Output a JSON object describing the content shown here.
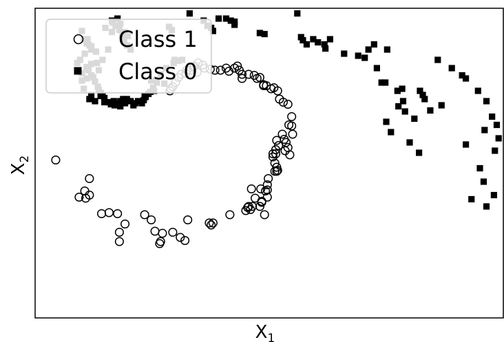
{
  "chart_data": {
    "type": "scatter",
    "title": "",
    "xlabel_main": "X",
    "xlabel_sub": "1",
    "ylabel_main": "X",
    "ylabel_sub": "2",
    "xlim": [
      -2.0,
      3.0
    ],
    "ylim": [
      -1.4,
      1.6
    ],
    "grid": false,
    "ticks_shown": false,
    "legend": {
      "placement": "top-left",
      "entries": [
        "Class 1",
        "Class 0"
      ]
    },
    "series": [
      {
        "name": "Class 1",
        "marker": "open-circle",
        "color": "#000000",
        "points": [
          [
            -1.78,
            0.13
          ],
          [
            -1.42,
            -0.05
          ],
          [
            -1.47,
            -0.17
          ],
          [
            -1.42,
            -0.21
          ],
          [
            -1.53,
            -0.23
          ],
          [
            -1.46,
            -0.24
          ],
          [
            -1.29,
            -0.39
          ],
          [
            -1.21,
            -0.38
          ],
          [
            -1.12,
            -0.39
          ],
          [
            -1.04,
            -0.49
          ],
          [
            -1.1,
            -0.57
          ],
          [
            -1.1,
            -0.66
          ],
          [
            -0.83,
            -0.4
          ],
          [
            -0.76,
            -0.45
          ],
          [
            -0.72,
            -0.56
          ],
          [
            -0.66,
            -0.66
          ],
          [
            -0.67,
            -0.68
          ],
          [
            -0.64,
            -0.58
          ],
          [
            -0.53,
            -0.57
          ],
          [
            -0.45,
            -0.62
          ],
          [
            -0.4,
            -0.65
          ],
          [
            -0.37,
            -0.45
          ],
          [
            -0.14,
            -0.48
          ],
          [
            -0.12,
            -0.5
          ],
          [
            -0.1,
            -0.48
          ],
          [
            0.08,
            -0.4
          ],
          [
            0.25,
            -0.36
          ],
          [
            0.27,
            -0.33
          ],
          [
            0.3,
            -0.35
          ],
          [
            0.28,
            -0.32
          ],
          [
            0.32,
            -0.32
          ],
          [
            0.35,
            -0.24
          ],
          [
            0.4,
            -0.32
          ],
          [
            0.42,
            -0.28
          ],
          [
            0.42,
            -0.27
          ],
          [
            0.46,
            -0.17
          ],
          [
            0.48,
            -0.16
          ],
          [
            0.48,
            -0.11
          ],
          [
            0.45,
            -0.4
          ],
          [
            0.49,
            -0.05
          ],
          [
            0.56,
            0.02
          ],
          [
            0.58,
            0.02
          ],
          [
            0.59,
            0.03
          ],
          [
            0.58,
            0.06
          ],
          [
            0.56,
            0.1
          ],
          [
            0.54,
            0.16
          ],
          [
            0.57,
            0.19
          ],
          [
            0.57,
            0.23
          ],
          [
            0.6,
            0.27
          ],
          [
            0.68,
            0.3
          ],
          [
            0.66,
            0.33
          ],
          [
            0.7,
            0.25
          ],
          [
            0.72,
            0.18
          ],
          [
            0.75,
            0.38
          ],
          [
            0.74,
            0.46
          ],
          [
            0.71,
            0.47
          ],
          [
            0.74,
            0.55
          ],
          [
            0.7,
            0.67
          ],
          [
            0.65,
            0.69
          ],
          [
            0.61,
            0.72
          ],
          [
            0.59,
            0.8
          ],
          [
            0.55,
            0.83
          ],
          [
            0.52,
            0.82
          ],
          [
            0.47,
            0.85
          ],
          [
            0.44,
            0.86
          ],
          [
            0.4,
            0.93
          ],
          [
            0.34,
            0.95
          ],
          [
            0.37,
            0.92
          ],
          [
            0.28,
            0.96
          ],
          [
            0.21,
            0.92
          ],
          [
            0.18,
            1.0
          ],
          [
            0.16,
            1.04
          ],
          [
            0.13,
            1.02
          ],
          [
            0.07,
            0.99
          ],
          [
            0.04,
            1.02
          ],
          [
            -0.02,
            1.0
          ],
          [
            -0.08,
            1.0
          ],
          [
            -0.13,
            1.01
          ],
          [
            -0.19,
            1.02
          ],
          [
            -0.27,
            0.98
          ],
          [
            -0.26,
            1.07
          ],
          [
            -0.31,
            1.03
          ],
          [
            -0.34,
            1.0
          ],
          [
            -0.38,
            1.0
          ],
          [
            -0.39,
            0.97
          ],
          [
            -0.47,
            0.93
          ],
          [
            -0.5,
            0.88
          ],
          [
            -0.53,
            0.84
          ],
          [
            -0.55,
            0.82
          ],
          [
            -0.56,
            0.8
          ],
          [
            -0.44,
            0.96
          ],
          [
            -0.21,
            1.05
          ],
          [
            -0.3,
            1.04
          ],
          [
            0.21,
            0.96
          ],
          [
            0.64,
            0.38
          ],
          [
            0.54,
            0.19
          ],
          [
            0.44,
            0.85
          ],
          [
            0.67,
            0.22
          ],
          [
            0.58,
            0.32
          ],
          [
            0.48,
            -0.23
          ],
          [
            0.41,
            -0.15
          ],
          [
            0.31,
            -0.15
          ]
        ]
      },
      {
        "name": "Class 0",
        "marker": "filled-square",
        "color": "#000000",
        "points": [
          [
            -1.18,
            1.48
          ],
          [
            -1.14,
            1.43
          ],
          [
            -1.1,
            1.39
          ],
          [
            -1.04,
            1.37
          ],
          [
            -1.07,
            1.34
          ],
          [
            -1.01,
            1.33
          ],
          [
            -1.05,
            1.29
          ],
          [
            -1.18,
            1.37
          ],
          [
            -0.98,
            1.2
          ],
          [
            -1.02,
            1.24
          ],
          [
            -1.22,
            1.2
          ],
          [
            -1.4,
            1.2
          ],
          [
            -1.47,
            1.16
          ],
          [
            -1.52,
            1.1
          ],
          [
            -1.55,
            1.07
          ],
          [
            -1.45,
            1.03
          ],
          [
            -1.43,
            1.0
          ],
          [
            -1.4,
            0.95
          ],
          [
            -1.36,
            0.89
          ],
          [
            -1.32,
            0.81
          ],
          [
            -1.3,
            0.78
          ],
          [
            -1.28,
            0.75
          ],
          [
            -1.26,
            0.73
          ],
          [
            -1.22,
            0.69
          ],
          [
            -1.19,
            0.67
          ],
          [
            -1.15,
            0.66
          ],
          [
            -1.12,
            0.68
          ],
          [
            -1.09,
            0.7
          ],
          [
            -1.06,
            0.72
          ],
          [
            -1.02,
            0.72
          ],
          [
            -0.98,
            0.7
          ],
          [
            -0.93,
            0.68
          ],
          [
            -0.86,
            0.68
          ],
          [
            -0.84,
            0.71
          ],
          [
            -0.82,
            0.74
          ],
          [
            -0.79,
            0.77
          ],
          [
            -0.77,
            0.79
          ],
          [
            -0.74,
            0.83
          ],
          [
            -0.7,
            0.88
          ],
          [
            -0.66,
            0.96
          ],
          [
            -0.6,
            1.02
          ],
          [
            -0.52,
            1.07
          ],
          [
            -0.43,
            1.1
          ],
          [
            -0.47,
            1.09
          ],
          [
            -0.51,
            1.1
          ],
          [
            -1.5,
            0.9
          ],
          [
            -1.45,
            0.92
          ],
          [
            -1.38,
            0.93
          ],
          [
            -1.33,
            0.84
          ],
          [
            -1.3,
            0.75
          ],
          [
            -1.42,
            0.72
          ],
          [
            -1.48,
            0.82
          ],
          [
            -1.5,
            0.97
          ],
          [
            -1.34,
            1.07
          ],
          [
            -1.28,
            1.1
          ],
          [
            -1.4,
            1.06
          ],
          [
            -1.44,
            1.3
          ],
          [
            -1.45,
            1.26
          ],
          [
            -1.4,
            1.23
          ],
          [
            -0.57,
            1.42
          ],
          [
            -0.54,
            1.39
          ],
          [
            -0.35,
            1.55
          ],
          [
            -0.2,
            1.48
          ],
          [
            -0.16,
            1.43
          ],
          [
            -0.12,
            1.41
          ],
          [
            -0.1,
            1.38
          ],
          [
            -0.04,
            1.5
          ],
          [
            0.04,
            1.5
          ],
          [
            0.09,
            1.48
          ],
          [
            0.13,
            1.47
          ],
          [
            0.13,
            1.44
          ],
          [
            0.4,
            1.36
          ],
          [
            0.45,
            1.35
          ],
          [
            0.8,
            1.55
          ],
          [
            0.84,
            1.32
          ],
          [
            0.86,
            1.29
          ],
          [
            0.9,
            1.25
          ],
          [
            0.97,
            1.3
          ],
          [
            1.02,
            1.27
          ],
          [
            1.09,
            1.25
          ],
          [
            1.1,
            1.21
          ],
          [
            1.15,
            1.3
          ],
          [
            1.3,
            1.16
          ],
          [
            1.45,
            1.14
          ],
          [
            1.52,
            1.12
          ],
          [
            1.56,
            1.2
          ],
          [
            1.62,
            1.25
          ],
          [
            1.76,
            1.2
          ],
          [
            1.65,
            1.02
          ],
          [
            1.74,
            0.88
          ],
          [
            1.7,
            0.88
          ],
          [
            1.87,
            0.8
          ],
          [
            1.92,
            0.82
          ],
          [
            1.93,
            0.7
          ],
          [
            1.88,
            0.65
          ],
          [
            1.95,
            0.6
          ],
          [
            2.11,
            0.8
          ],
          [
            2.14,
            0.76
          ],
          [
            2.16,
            0.72
          ],
          [
            1.75,
            0.5
          ],
          [
            1.8,
            0.4
          ],
          [
            2.0,
            0.3
          ],
          [
            2.1,
            0.2
          ],
          [
            2.3,
            1.1
          ],
          [
            2.45,
            1.02
          ],
          [
            2.6,
            0.92
          ],
          [
            2.73,
            0.8
          ],
          [
            2.82,
            0.7
          ],
          [
            2.88,
            0.55
          ],
          [
            2.8,
            0.42
          ],
          [
            2.93,
            0.47
          ],
          [
            2.95,
            0.34
          ],
          [
            2.91,
            0.22
          ],
          [
            2.6,
            0.28
          ],
          [
            2.75,
            0.05
          ],
          [
            2.79,
            -0.08
          ],
          [
            2.9,
            -0.21
          ],
          [
            2.66,
            -0.25
          ],
          [
            2.82,
            -0.32
          ],
          [
            2.56,
            0.95
          ],
          [
            2.05,
            0.53
          ],
          [
            2.22,
            0.61
          ],
          [
            2.34,
            0.66
          ],
          [
            -0.83,
            0.75
          ],
          [
            -0.62,
            0.87
          ],
          [
            -0.76,
            0.9
          ],
          [
            -0.73,
            0.8
          ],
          [
            -0.9,
            0.7
          ],
          [
            -0.95,
            0.66
          ],
          [
            -1.04,
            0.68
          ],
          [
            -1.09,
            0.65
          ],
          [
            -1.16,
            0.7
          ],
          [
            -1.26,
            0.69
          ],
          [
            -1.36,
            0.7
          ],
          [
            -1.4,
            0.76
          ],
          [
            -1.32,
            1.0
          ],
          [
            -1.35,
            1.18
          ],
          [
            -1.42,
            1.24
          ],
          [
            -1.48,
            1.3
          ],
          [
            -1.5,
            1.38
          ],
          [
            -1.17,
            1.46
          ],
          [
            -1.12,
            1.5
          ],
          [
            -1.09,
            1.45
          ],
          [
            -1.25,
            1.41
          ]
        ]
      }
    ]
  }
}
